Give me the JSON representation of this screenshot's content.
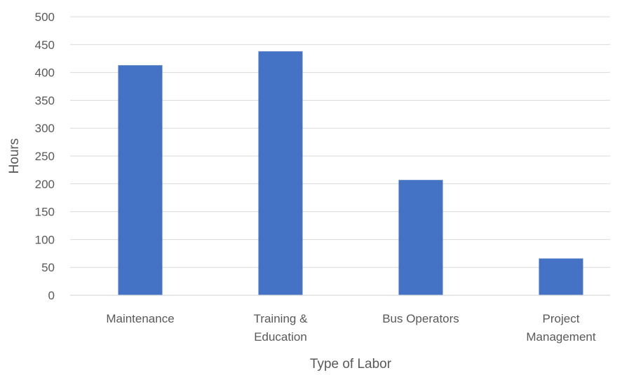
{
  "chart_data": {
    "type": "bar",
    "title": "",
    "categories": [
      [
        "Maintenance"
      ],
      [
        "Training &",
        "Education"
      ],
      [
        "Bus Operators"
      ],
      [
        "Project",
        "Management"
      ]
    ],
    "values": [
      413,
      438,
      207,
      66
    ],
    "xlabel": "Type of Labor",
    "ylabel": "Hours",
    "ylim": [
      0,
      500
    ],
    "yticks": [
      0,
      50,
      100,
      150,
      200,
      250,
      300,
      350,
      400,
      450,
      500
    ],
    "grid": true,
    "legend": "none",
    "bar_color": "#4472c4"
  }
}
